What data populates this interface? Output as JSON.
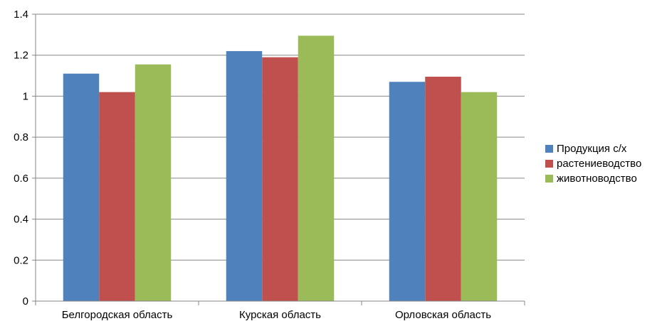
{
  "chart_data": {
    "type": "bar",
    "categories": [
      "Белгородская область",
      "Курская область",
      "Орловская область"
    ],
    "series": [
      {
        "name": "Продукция с/х",
        "color": "#4F81BD",
        "values": [
          1.11,
          1.22,
          1.07
        ]
      },
      {
        "name": "растениеводство",
        "color": "#C0504D",
        "values": [
          1.02,
          1.19,
          1.095
        ]
      },
      {
        "name": "животноводство",
        "color": "#9BBB59",
        "values": [
          1.155,
          1.295,
          1.02
        ]
      }
    ],
    "ylim": [
      0,
      1.4
    ],
    "yticks": [
      "0",
      "0.2",
      "0.4",
      "0.6",
      "0.8",
      "1",
      "1.2",
      "1.4"
    ],
    "grid": true,
    "legend_position": "right"
  }
}
